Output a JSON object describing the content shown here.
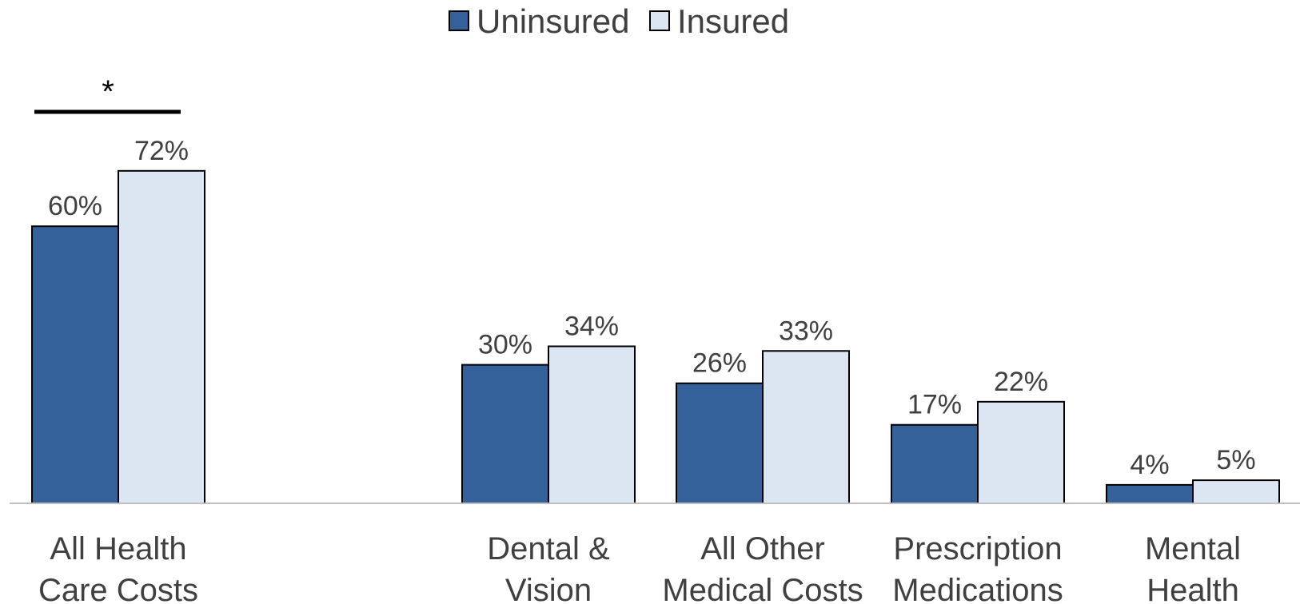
{
  "chart_data": {
    "type": "bar",
    "title": "",
    "xlabel": "",
    "ylabel": "",
    "ylim": [
      0,
      80
    ],
    "grid": false,
    "legend_position": "top-center",
    "categories": [
      [
        "All Health",
        "Care Costs"
      ],
      [
        "Dental &",
        "Vision"
      ],
      [
        "All Other",
        "Medical Costs"
      ],
      [
        "Prescription",
        "Medications"
      ],
      [
        "Mental",
        "Health"
      ]
    ],
    "series": [
      {
        "name": "Uninsured",
        "color": "#34619A",
        "values": [
          60,
          30,
          26,
          17,
          4
        ],
        "labels": [
          "60%",
          "30%",
          "26%",
          "17%",
          "4%"
        ]
      },
      {
        "name": "Insured",
        "color": "#DCE6F2",
        "values": [
          72,
          34,
          33,
          22,
          5
        ],
        "labels": [
          "72%",
          "34%",
          "33%",
          "22%",
          "5%"
        ]
      }
    ],
    "annotations": [
      {
        "text": "*",
        "category_index": 0,
        "meaning": "significance marker over first group"
      }
    ]
  }
}
